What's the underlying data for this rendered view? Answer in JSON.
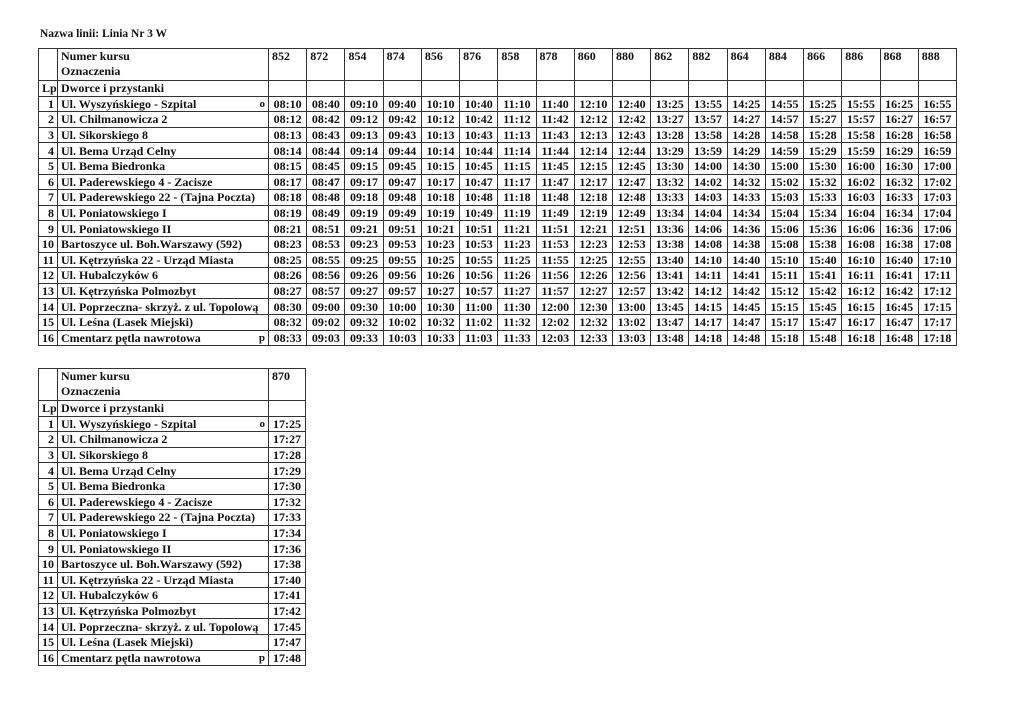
{
  "title": "Nazwa linii:  Linia Nr 3 W",
  "header": {
    "course_label": "Numer kursu",
    "marks_label": "Oznaczenia",
    "lp_label": "Lp",
    "stops_label": "Dworce i przystanki"
  },
  "stops": [
    {
      "lp": "1",
      "name": "Ul. Wyszyńskiego - Szpital",
      "mark": "o"
    },
    {
      "lp": "2",
      "name": "Ul. Chilmanowicza 2",
      "mark": ""
    },
    {
      "lp": "3",
      "name": "Ul. Sikorskiego 8",
      "mark": ""
    },
    {
      "lp": "4",
      "name": "Ul. Bema Urząd Celny",
      "mark": ""
    },
    {
      "lp": "5",
      "name": "Ul. Bema Biedronka",
      "mark": ""
    },
    {
      "lp": "6",
      "name": "Ul. Paderewskiego 4 - Zacisze",
      "mark": ""
    },
    {
      "lp": "7",
      "name": "Ul. Paderewskiego 22 - (Tajna Poczta)",
      "mark": ""
    },
    {
      "lp": "8",
      "name": "Ul. Poniatowskiego I",
      "mark": ""
    },
    {
      "lp": "9",
      "name": "Ul. Poniatowskiego II",
      "mark": ""
    },
    {
      "lp": "10",
      "name": "Bartoszyce ul. Boh.Warszawy (592)",
      "mark": ""
    },
    {
      "lp": "11",
      "name": "Ul. Kętrzyńska 22 - Urząd Miasta",
      "mark": ""
    },
    {
      "lp": "12",
      "name": "Ul. Hubalczyków 6",
      "mark": ""
    },
    {
      "lp": "13",
      "name": "Ul. Kętrzyńska Polmozbyt",
      "mark": ""
    },
    {
      "lp": "14",
      "name": "Ul. Poprzeczna- skrzyż. z ul. Topolową",
      "mark": ""
    },
    {
      "lp": "15",
      "name": "Ul. Leśna (Lasek Miejski)",
      "mark": ""
    },
    {
      "lp": "16",
      "name": "Cmentarz pętla nawrotowa",
      "mark": "p"
    }
  ],
  "tables": [
    {
      "courses": [
        {
          "number": "852",
          "times": [
            "08:10",
            "08:12",
            "08:13",
            "08:14",
            "08:15",
            "08:17",
            "08:18",
            "08:19",
            "08:21",
            "08:23",
            "08:25",
            "08:26",
            "08:27",
            "08:30",
            "08:32",
            "08:33"
          ]
        },
        {
          "number": "872",
          "times": [
            "08:40",
            "08:42",
            "08:43",
            "08:44",
            "08:45",
            "08:47",
            "08:48",
            "08:49",
            "08:51",
            "08:53",
            "08:55",
            "08:56",
            "08:57",
            "09:00",
            "09:02",
            "09:03"
          ]
        },
        {
          "number": "854",
          "times": [
            "09:10",
            "09:12",
            "09:13",
            "09:14",
            "09:15",
            "09:17",
            "09:18",
            "09:19",
            "09:21",
            "09:23",
            "09:25",
            "09:26",
            "09:27",
            "09:30",
            "09:32",
            "09:33"
          ]
        },
        {
          "number": "874",
          "times": [
            "09:40",
            "09:42",
            "09:43",
            "09:44",
            "09:45",
            "09:47",
            "09:48",
            "09:49",
            "09:51",
            "09:53",
            "09:55",
            "09:56",
            "09:57",
            "10:00",
            "10:02",
            "10:03"
          ]
        },
        {
          "number": "856",
          "times": [
            "10:10",
            "10:12",
            "10:13",
            "10:14",
            "10:15",
            "10:17",
            "10:18",
            "10:19",
            "10:21",
            "10:23",
            "10:25",
            "10:26",
            "10:27",
            "10:30",
            "10:32",
            "10:33"
          ]
        },
        {
          "number": "876",
          "times": [
            "10:40",
            "10:42",
            "10:43",
            "10:44",
            "10:45",
            "10:47",
            "10:48",
            "10:49",
            "10:51",
            "10:53",
            "10:55",
            "10:56",
            "10:57",
            "11:00",
            "11:02",
            "11:03"
          ]
        },
        {
          "number": "858",
          "times": [
            "11:10",
            "11:12",
            "11:13",
            "11:14",
            "11:15",
            "11:17",
            "11:18",
            "11:19",
            "11:21",
            "11:23",
            "11:25",
            "11:26",
            "11:27",
            "11:30",
            "11:32",
            "11:33"
          ]
        },
        {
          "number": "878",
          "times": [
            "11:40",
            "11:42",
            "11:43",
            "11:44",
            "11:45",
            "11:47",
            "11:48",
            "11:49",
            "11:51",
            "11:53",
            "11:55",
            "11:56",
            "11:57",
            "12:00",
            "12:02",
            "12:03"
          ]
        },
        {
          "number": "860",
          "times": [
            "12:10",
            "12:12",
            "12:13",
            "12:14",
            "12:15",
            "12:17",
            "12:18",
            "12:19",
            "12:21",
            "12:23",
            "12:25",
            "12:26",
            "12:27",
            "12:30",
            "12:32",
            "12:33"
          ]
        },
        {
          "number": "880",
          "times": [
            "12:40",
            "12:42",
            "12:43",
            "12:44",
            "12:45",
            "12:47",
            "12:48",
            "12:49",
            "12:51",
            "12:53",
            "12:55",
            "12:56",
            "12:57",
            "13:00",
            "13:02",
            "13:03"
          ]
        },
        {
          "number": "862",
          "times": [
            "13:25",
            "13:27",
            "13:28",
            "13:29",
            "13:30",
            "13:32",
            "13:33",
            "13:34",
            "13:36",
            "13:38",
            "13:40",
            "13:41",
            "13:42",
            "13:45",
            "13:47",
            "13:48"
          ]
        },
        {
          "number": "882",
          "times": [
            "13:55",
            "13:57",
            "13:58",
            "13:59",
            "14:00",
            "14:02",
            "14:03",
            "14:04",
            "14:06",
            "14:08",
            "14:10",
            "14:11",
            "14:12",
            "14:15",
            "14:17",
            "14:18"
          ]
        },
        {
          "number": "864",
          "times": [
            "14:25",
            "14:27",
            "14:28",
            "14:29",
            "14:30",
            "14:32",
            "14:33",
            "14:34",
            "14:36",
            "14:38",
            "14:40",
            "14:41",
            "14:42",
            "14:45",
            "14:47",
            "14:48"
          ]
        },
        {
          "number": "884",
          "times": [
            "14:55",
            "14:57",
            "14:58",
            "14:59",
            "15:00",
            "15:02",
            "15:03",
            "15:04",
            "15:06",
            "15:08",
            "15:10",
            "15:11",
            "15:12",
            "15:15",
            "15:17",
            "15:18"
          ]
        },
        {
          "number": "866",
          "times": [
            "15:25",
            "15:27",
            "15:28",
            "15:29",
            "15:30",
            "15:32",
            "15:33",
            "15:34",
            "15:36",
            "15:38",
            "15:40",
            "15:41",
            "15:42",
            "15:45",
            "15:47",
            "15:48"
          ]
        },
        {
          "number": "886",
          "times": [
            "15:55",
            "15:57",
            "15:58",
            "15:59",
            "16:00",
            "16:02",
            "16:03",
            "16:04",
            "16:06",
            "16:08",
            "16:10",
            "16:11",
            "16:12",
            "16:15",
            "16:17",
            "16:18"
          ]
        },
        {
          "number": "868",
          "times": [
            "16:25",
            "16:27",
            "16:28",
            "16:29",
            "16:30",
            "16:32",
            "16:33",
            "16:34",
            "16:36",
            "16:38",
            "16:40",
            "16:41",
            "16:42",
            "16:45",
            "16:47",
            "16:48"
          ]
        },
        {
          "number": "888",
          "times": [
            "16:55",
            "16:57",
            "16:58",
            "16:59",
            "17:00",
            "17:02",
            "17:03",
            "17:04",
            "17:06",
            "17:08",
            "17:10",
            "17:11",
            "17:12",
            "17:15",
            "17:17",
            "17:18"
          ]
        }
      ]
    },
    {
      "courses": [
        {
          "number": "870",
          "times": [
            "17:25",
            "17:27",
            "17:28",
            "17:29",
            "17:30",
            "17:32",
            "17:33",
            "17:34",
            "17:36",
            "17:38",
            "17:40",
            "17:41",
            "17:42",
            "17:45",
            "17:47",
            "17:48"
          ]
        }
      ]
    }
  ]
}
